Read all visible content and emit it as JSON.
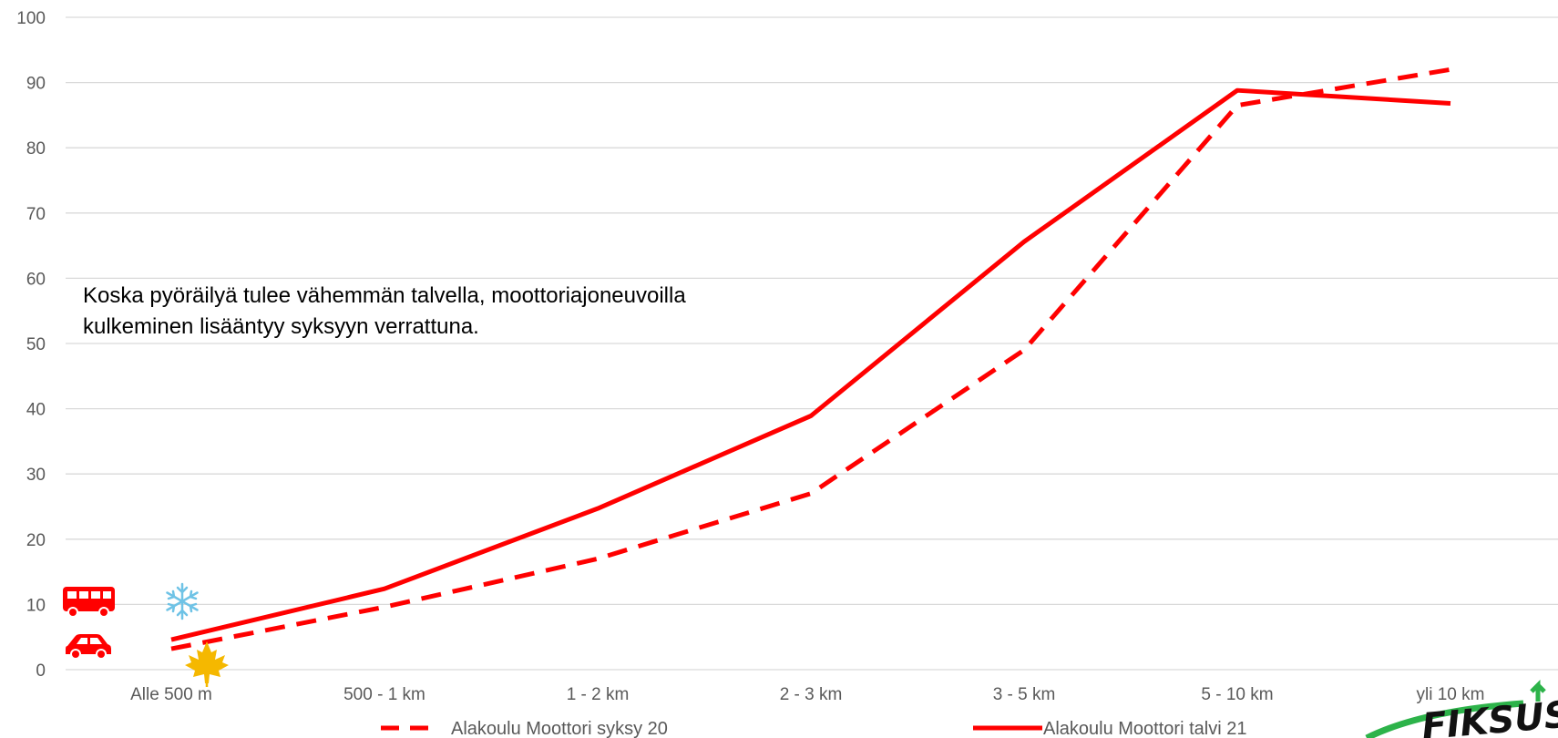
{
  "chart_data": {
    "type": "line",
    "categories": [
      "Alle 500 m",
      "500 - 1 km",
      "1 - 2 km",
      "2 - 3 km",
      "3 - 5 km",
      "5 - 10 km",
      "yli 10 km"
    ],
    "series": [
      {
        "name": "Alakoulu Moottori syksy 20",
        "values": [
          3.2,
          9.6,
          17,
          27,
          49,
          86.5,
          92
        ],
        "color": "#ff0000",
        "style": "dashed"
      },
      {
        "name": "Alakoulu Moottori talvi 21",
        "values": [
          4.6,
          12.4,
          24.7,
          38.9,
          65.6,
          88.8,
          86.8
        ],
        "color": "#ff0000",
        "style": "solid"
      }
    ],
    "y_ticks": [
      "0",
      "10",
      "20",
      "30",
      "40",
      "50",
      "60",
      "70",
      "80",
      "90",
      "100"
    ],
    "ylim": [
      0,
      100
    ],
    "grid": true,
    "legend_position": "bottom",
    "annotation": "Koska pyöräilyä tulee vähemmän talvella, moottoriajoneuvoilla kulkeminen lisääntyy syksyyn verrattuna.",
    "icons": [
      "bus-icon",
      "car-icon",
      "snowflake-icon",
      "maple-leaf-icon",
      "fiksu-logo"
    ]
  },
  "logo_text": "FIKSUS"
}
